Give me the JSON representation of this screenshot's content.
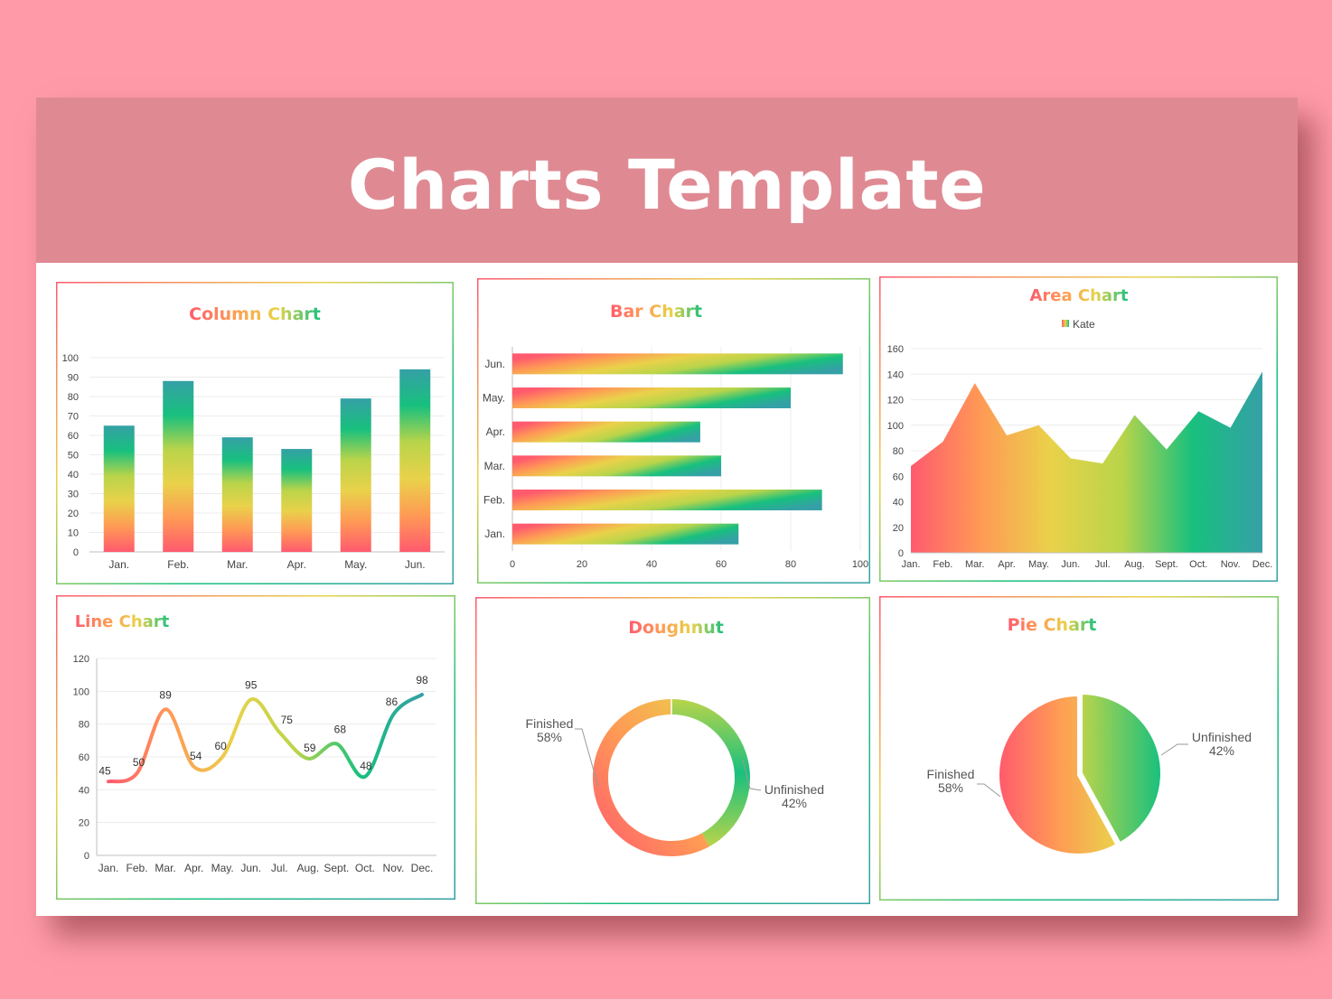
{
  "slide": {
    "title": "Charts Template"
  },
  "colors": {
    "background": "#ff9ba8",
    "banner": "#df8a93",
    "gradient": [
      "#ff5a6e",
      "#ff9a55",
      "#e9d24a",
      "#b9d44a",
      "#18c07e",
      "#35a0a6"
    ]
  },
  "chart_data": [
    {
      "id": "column",
      "type": "bar",
      "title": "Column Chart",
      "categories": [
        "Jan.",
        "Feb.",
        "Mar.",
        "Apr.",
        "May.",
        "Jun."
      ],
      "values": [
        65,
        88,
        59,
        53,
        79,
        94
      ],
      "ylim": [
        0,
        100
      ],
      "yticks": [
        0,
        10,
        20,
        30,
        40,
        50,
        60,
        70,
        80,
        90,
        100
      ],
      "grid": true
    },
    {
      "id": "bar",
      "type": "bar",
      "orientation": "horizontal",
      "title": "Bar Chart",
      "categories": [
        "Jan.",
        "Feb.",
        "Mar.",
        "Apr.",
        "May.",
        "Jun."
      ],
      "values": [
        65,
        89,
        60,
        54,
        80,
        95
      ],
      "xlim": [
        0,
        100
      ],
      "xticks": [
        0,
        20,
        40,
        60,
        80,
        100
      ],
      "grid": true
    },
    {
      "id": "area",
      "type": "area",
      "title": "Area Chart",
      "legend": {
        "entries": [
          "Kate"
        ],
        "placement": "top"
      },
      "series": [
        {
          "name": "Kate",
          "values": [
            68,
            87,
            133,
            92,
            100,
            74,
            70,
            108,
            81,
            111,
            98,
            142
          ]
        }
      ],
      "categories": [
        "Jan.",
        "Feb.",
        "Mar.",
        "Apr.",
        "May.",
        "Jun.",
        "Jul.",
        "Aug.",
        "Sept.",
        "Oct.",
        "Nov.",
        "Dec."
      ],
      "ylim": [
        0,
        160
      ],
      "yticks": [
        0,
        20,
        40,
        60,
        80,
        100,
        120,
        140,
        160
      ],
      "grid": true
    },
    {
      "id": "line",
      "type": "line",
      "title": "Line Chart",
      "categories": [
        "Jan.",
        "Feb.",
        "Mar.",
        "Apr.",
        "May.",
        "Jun.",
        "Jul.",
        "Aug.",
        "Sept.",
        "Oct.",
        "Nov.",
        "Dec."
      ],
      "values": [
        45,
        50,
        89,
        54,
        60,
        95,
        75,
        59,
        68,
        48,
        86,
        98
      ],
      "data_labels": [
        "45",
        "50",
        "89",
        "54",
        "60",
        "95",
        "75",
        "59",
        "68",
        "48",
        "86",
        "98"
      ],
      "ylim": [
        0,
        120
      ],
      "yticks": [
        0,
        20,
        40,
        60,
        80,
        100,
        120
      ],
      "grid": true
    },
    {
      "id": "doughnut",
      "type": "pie",
      "variant": "doughnut",
      "title": "Doughnut",
      "slices": [
        {
          "label": "Finished",
          "value": 58,
          "display": "58%"
        },
        {
          "label": "Unfinished",
          "value": 42,
          "display": "42%"
        }
      ]
    },
    {
      "id": "pie",
      "type": "pie",
      "title": "Pie Chart",
      "slices": [
        {
          "label": "Finished",
          "value": 58,
          "display": "58%"
        },
        {
          "label": "Unfinished",
          "value": 42,
          "display": "42%"
        }
      ]
    }
  ]
}
